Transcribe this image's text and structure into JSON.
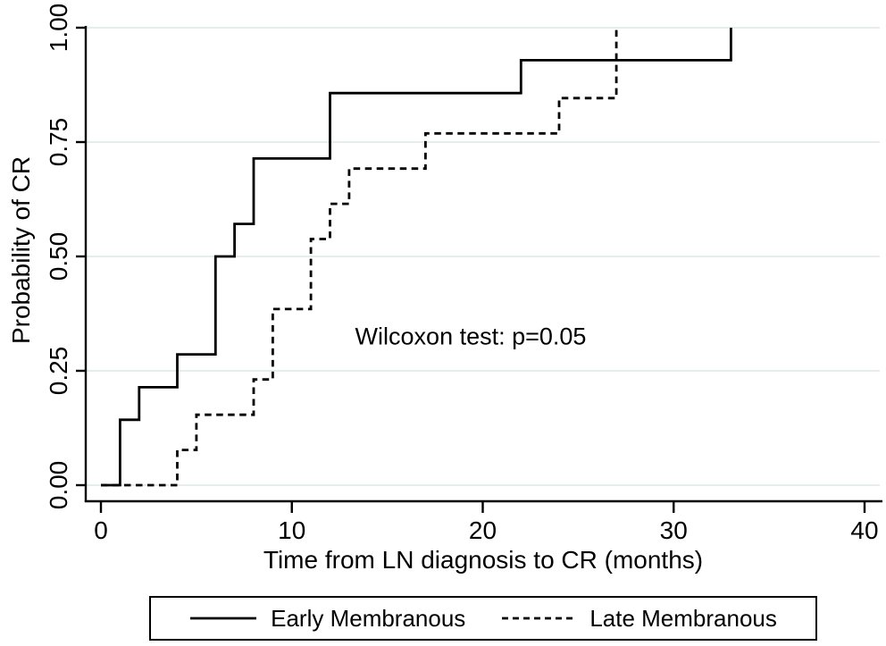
{
  "chart_data": {
    "type": "line",
    "subtype": "kaplan-meier-step",
    "title": "",
    "xlabel": "Time from LN diagnosis to CR (months)",
    "ylabel": "Probability of CR",
    "xlim": [
      0,
      40
    ],
    "ylim": [
      0,
      1
    ],
    "grid": "horizontal-only",
    "legend_position": "bottom-center-boxed",
    "annotation": {
      "text": "Wilcoxon test: p=0.05"
    },
    "xticks": [
      {
        "value": 0,
        "label": "0"
      },
      {
        "value": 10,
        "label": "10"
      },
      {
        "value": 20,
        "label": "20"
      },
      {
        "value": 30,
        "label": "30"
      },
      {
        "value": 40,
        "label": "40"
      }
    ],
    "yticks": [
      {
        "value": 0.0,
        "label": "0.00"
      },
      {
        "value": 0.25,
        "label": "0.25"
      },
      {
        "value": 0.5,
        "label": "0.50"
      },
      {
        "value": 0.75,
        "label": "0.75"
      },
      {
        "value": 1.0,
        "label": "1.00"
      }
    ],
    "series": [
      {
        "name": "Early Membranous",
        "line_style": "solid",
        "color": "#000000",
        "points": [
          [
            0,
            0
          ],
          [
            1,
            0.143
          ],
          [
            2,
            0.214
          ],
          [
            4,
            0.286
          ],
          [
            6,
            0.5
          ],
          [
            7,
            0.571
          ],
          [
            8,
            0.714
          ],
          [
            12,
            0.857
          ],
          [
            22,
            0.929
          ],
          [
            33,
            1.0
          ]
        ]
      },
      {
        "name": "Late Membranous",
        "line_style": "dashed",
        "color": "#000000",
        "points": [
          [
            0,
            0
          ],
          [
            4,
            0.077
          ],
          [
            5,
            0.154
          ],
          [
            8,
            0.231
          ],
          [
            9,
            0.385
          ],
          [
            11,
            0.538
          ],
          [
            12,
            0.615
          ],
          [
            13,
            0.692
          ],
          [
            17,
            0.769
          ],
          [
            24,
            0.846
          ],
          [
            27,
            1.0
          ]
        ]
      }
    ],
    "colors": {
      "grid": "#e7edea",
      "axis": "#000000",
      "text": "#000000",
      "background": "#ffffff"
    }
  }
}
